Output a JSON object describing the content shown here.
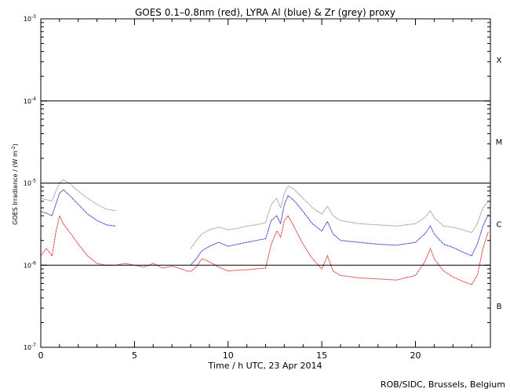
{
  "chart_data": {
    "type": "line",
    "title": "GOES 0.1–0.8nm (red), LYRA Al (blue) & Zr (grey) proxy",
    "xlabel": "Time / h UTC, 23 Apr 2014",
    "ylabel": "GOES Irradiance / (W m",
    "ylabel_sup": "-2",
    "ylabel_close": ")",
    "xlim": [
      0,
      24
    ],
    "ylim": [
      1e-07,
      0.001
    ],
    "yscale": "log",
    "x_ticks": [
      {
        "value": 0,
        "label": "0"
      },
      {
        "value": 5,
        "label": "5"
      },
      {
        "value": 10,
        "label": "10"
      },
      {
        "value": 15,
        "label": "15"
      },
      {
        "value": 20,
        "label": "20"
      }
    ],
    "y_ticks": [
      {
        "value": 1e-07,
        "base": "10",
        "exp": "-7"
      },
      {
        "value": 1e-06,
        "base": "10",
        "exp": "-6"
      },
      {
        "value": 1e-05,
        "base": "10",
        "exp": "-5"
      },
      {
        "value": 0.0001,
        "base": "10",
        "exp": "-4"
      },
      {
        "value": 0.001,
        "base": "10",
        "exp": "-3"
      }
    ],
    "threshold_lines": [
      1e-06,
      1e-05,
      0.0001
    ],
    "flare_classes": [
      {
        "label": "B",
        "value": 3.2e-07
      },
      {
        "label": "C",
        "value": 3.2e-06
      },
      {
        "label": "M",
        "value": 3.2e-05
      },
      {
        "label": "X",
        "value": 0.00032
      }
    ],
    "series": [
      {
        "color": "#808080",
        "segments": [
          [
            [
              0,
              6.5e-06
            ],
            [
              0.3,
              6.3e-06
            ],
            [
              0.6,
              6e-06
            ],
            [
              0.8,
              8e-06
            ],
            [
              1.0,
              1e-05
            ],
            [
              1.2,
              1.1e-05
            ],
            [
              1.5,
              1e-05
            ],
            [
              2.0,
              8e-06
            ],
            [
              2.5,
              6.5e-06
            ],
            [
              3.0,
              5.5e-06
            ],
            [
              3.5,
              4.8e-06
            ],
            [
              4.0,
              4.6e-06
            ]
          ],
          [
            [
              8.0,
              1.6e-06
            ],
            [
              8.3,
              2e-06
            ],
            [
              8.6,
              2.4e-06
            ],
            [
              9.0,
              2.7e-06
            ],
            [
              9.5,
              2.9e-06
            ],
            [
              10,
              2.7e-06
            ],
            [
              10.5,
              2.8e-06
            ],
            [
              11,
              3e-06
            ],
            [
              11.5,
              3.1e-06
            ],
            [
              12.0,
              3.3e-06
            ],
            [
              12.3,
              5.5e-06
            ],
            [
              12.6,
              6.5e-06
            ],
            [
              12.8,
              5e-06
            ],
            [
              13.0,
              7.5e-06
            ],
            [
              13.2,
              9.2e-06
            ],
            [
              13.5,
              8.5e-06
            ],
            [
              14.0,
              6.5e-06
            ],
            [
              14.5,
              5e-06
            ],
            [
              15.0,
              4.2e-06
            ],
            [
              15.3,
              5.2e-06
            ],
            [
              15.6,
              4e-06
            ],
            [
              16,
              3.5e-06
            ],
            [
              17,
              3.2e-06
            ],
            [
              18,
              3.1e-06
            ],
            [
              19,
              3e-06
            ],
            [
              20,
              3.2e-06
            ],
            [
              20.5,
              3.8e-06
            ],
            [
              20.8,
              4.6e-06
            ],
            [
              21.0,
              3.8e-06
            ],
            [
              21.5,
              3e-06
            ],
            [
              22,
              2.9e-06
            ],
            [
              22.5,
              2.7e-06
            ],
            [
              23,
              2.5e-06
            ],
            [
              23.3,
              3.2e-06
            ],
            [
              23.6,
              5e-06
            ],
            [
              23.9,
              6e-06
            ]
          ]
        ]
      },
      {
        "color": "#0000c0",
        "segments": [
          [
            [
              0,
              4.5e-06
            ],
            [
              0.3,
              4.3e-06
            ],
            [
              0.6,
              4e-06
            ],
            [
              0.8,
              5.5e-06
            ],
            [
              1.0,
              7.5e-06
            ],
            [
              1.2,
              8.3e-06
            ],
            [
              1.5,
              7.2e-06
            ],
            [
              2.0,
              5.5e-06
            ],
            [
              2.5,
              4.2e-06
            ],
            [
              3.0,
              3.5e-06
            ],
            [
              3.5,
              3.1e-06
            ],
            [
              4.0,
              3e-06
            ]
          ],
          [
            [
              8.0,
              1e-06
            ],
            [
              8.3,
              1.2e-06
            ],
            [
              8.6,
              1.5e-06
            ],
            [
              9.0,
              1.7e-06
            ],
            [
              9.5,
              1.9e-06
            ],
            [
              10,
              1.7e-06
            ],
            [
              10.5,
              1.8e-06
            ],
            [
              11,
              1.9e-06
            ],
            [
              11.5,
              2e-06
            ],
            [
              12.0,
              2.1e-06
            ],
            [
              12.3,
              3.5e-06
            ],
            [
              12.6,
              4e-06
            ],
            [
              12.8,
              3.2e-06
            ],
            [
              13.0,
              5.5e-06
            ],
            [
              13.2,
              7e-06
            ],
            [
              13.5,
              6.2e-06
            ],
            [
              14.0,
              4.5e-06
            ],
            [
              14.5,
              3.2e-06
            ],
            [
              15.0,
              2.6e-06
            ],
            [
              15.3,
              3.4e-06
            ],
            [
              15.6,
              2.4e-06
            ],
            [
              16,
              2e-06
            ],
            [
              17,
              1.9e-06
            ],
            [
              18,
              1.8e-06
            ],
            [
              19,
              1.75e-06
            ],
            [
              20,
              1.9e-06
            ],
            [
              20.5,
              2.4e-06
            ],
            [
              20.8,
              3e-06
            ],
            [
              21.0,
              2.4e-06
            ],
            [
              21.5,
              1.8e-06
            ],
            [
              22,
              1.65e-06
            ],
            [
              22.5,
              1.45e-06
            ],
            [
              23,
              1.3e-06
            ],
            [
              23.3,
              1.8e-06
            ],
            [
              23.6,
              3e-06
            ],
            [
              23.9,
              4.2e-06
            ]
          ]
        ]
      },
      {
        "color": "#d00000",
        "segments": [
          [
            [
              0,
              1.3e-06
            ],
            [
              0.3,
              1.6e-06
            ],
            [
              0.6,
              1.3e-06
            ],
            [
              0.8,
              2.5e-06
            ],
            [
              1.0,
              4e-06
            ],
            [
              1.2,
              3.2e-06
            ],
            [
              1.5,
              2.6e-06
            ],
            [
              2.0,
              1.8e-06
            ],
            [
              2.5,
              1.3e-06
            ],
            [
              3.0,
              1.05e-06
            ],
            [
              3.5,
              1e-06
            ],
            [
              4.0,
              1e-06
            ],
            [
              4.5,
              1.05e-06
            ],
            [
              5.0,
              1e-06
            ],
            [
              5.5,
              9.5e-07
            ],
            [
              6.0,
              1.05e-06
            ],
            [
              6.5,
              9.2e-07
            ],
            [
              7.0,
              9.7e-07
            ],
            [
              7.5,
              9e-07
            ],
            [
              7.8,
              8.5e-07
            ],
            [
              8.0,
              8.4e-07
            ],
            [
              8.3,
              9.5e-07
            ],
            [
              8.6,
              1.2e-06
            ],
            [
              9.0,
              1.1e-06
            ],
            [
              9.5,
              9.5e-07
            ],
            [
              10,
              8.5e-07
            ],
            [
              10.5,
              8.7e-07
            ],
            [
              11,
              8.8e-07
            ],
            [
              11.5,
              9e-07
            ],
            [
              12.0,
              9.2e-07
            ],
            [
              12.3,
              1.8e-06
            ],
            [
              12.6,
              2.6e-06
            ],
            [
              12.8,
              2.2e-06
            ],
            [
              13.0,
              3.5e-06
            ],
            [
              13.2,
              4e-06
            ],
            [
              13.5,
              3e-06
            ],
            [
              14.0,
              1.8e-06
            ],
            [
              14.5,
              1.2e-06
            ],
            [
              15.0,
              9e-07
            ],
            [
              15.3,
              1.3e-06
            ],
            [
              15.6,
              8.5e-07
            ],
            [
              16,
              7.5e-07
            ],
            [
              17,
              7e-07
            ],
            [
              18,
              6.8e-07
            ],
            [
              19,
              6.6e-07
            ],
            [
              20,
              7.5e-07
            ],
            [
              20.5,
              1.1e-06
            ],
            [
              20.8,
              1.6e-06
            ],
            [
              21.0,
              1.2e-06
            ],
            [
              21.5,
              8.5e-07
            ],
            [
              22,
              7.2e-07
            ],
            [
              22.5,
              6.4e-07
            ],
            [
              23,
              5.8e-07
            ],
            [
              23.3,
              7.5e-07
            ],
            [
              23.6,
              1.6e-06
            ],
            [
              23.9,
              2.6e-06
            ]
          ]
        ]
      }
    ]
  },
  "credit": "ROB/SIDC, Brussels, Belgium"
}
